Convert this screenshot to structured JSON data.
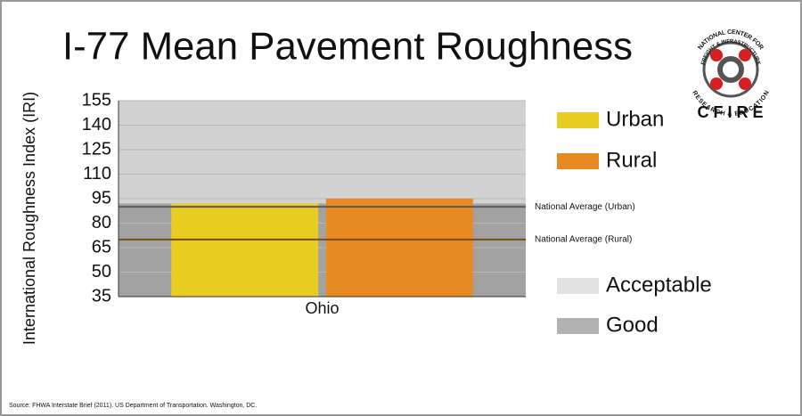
{
  "chart_data": {
    "type": "bar",
    "title": "I-77 Mean Pavement Roughness",
    "y_label": "International Roughness Index (IRI)",
    "categories": [
      "Ohio"
    ],
    "series": [
      {
        "name": "Urban",
        "color": "#e8cc22",
        "values": [
          92
        ]
      },
      {
        "name": "Rural",
        "color": "#e88a22",
        "values": [
          95
        ]
      }
    ],
    "bands": [
      {
        "name": "Acceptable",
        "color": "#d2d2d2",
        "legend_color": "#e2e2e2",
        "range": [
          92,
          155
        ]
      },
      {
        "name": "Good",
        "color": "#a2a2a2",
        "legend_color": "#b2b2b2",
        "range": [
          35,
          92
        ]
      }
    ],
    "reference_lines": [
      {
        "label": "National Average (Urban)",
        "value": 90,
        "color": "#5a5a5a"
      },
      {
        "label": "National Average (Rural)",
        "value": 70,
        "color": "#7a4a10"
      }
    ],
    "ylim": [
      35,
      155
    ],
    "yticks": [
      35,
      50,
      65,
      80,
      95,
      110,
      125,
      140,
      155
    ],
    "grid": true,
    "source": "Source: FHWA Interstate Brief (2011). US Department of Transportation. Washington, DC."
  },
  "logo": {
    "ring_top": "NATIONAL CENTER FOR",
    "ring_mid": "FREIGHT & INFRASTRUCTURE",
    "ring_bottom": "RESEARCH & EDUCATION",
    "name": "CFIRE"
  }
}
